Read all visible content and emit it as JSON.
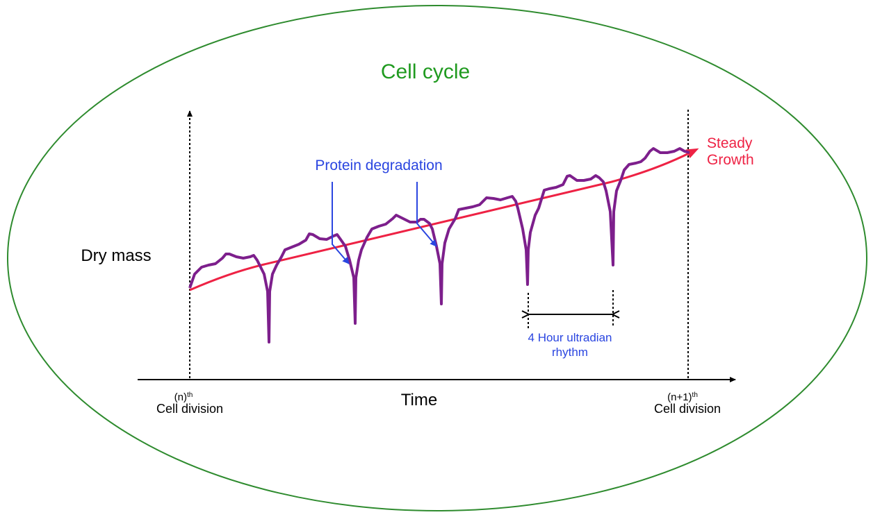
{
  "title": "Cell cycle",
  "y_axis_label": "Dry mass",
  "x_axis_label": "Time",
  "start_marker": {
    "line1": "(n)",
    "sup": "th",
    "line2": "Cell division"
  },
  "end_marker": {
    "line1": "(n+1)",
    "sup": "th",
    "line2": "Cell division"
  },
  "growth_label": {
    "line1": "Steady",
    "line2": "Growth"
  },
  "degradation_label": "Protein degradation",
  "rhythm_label": {
    "line1": "4 Hour ultradian",
    "line2": "rhythm"
  },
  "colors": {
    "ellipse": "#2e8b2e",
    "title": "#1f9a1f",
    "mass_curve": "#7d1f8c",
    "growth": "#ee2244",
    "annotation": "#2a45e0"
  }
}
